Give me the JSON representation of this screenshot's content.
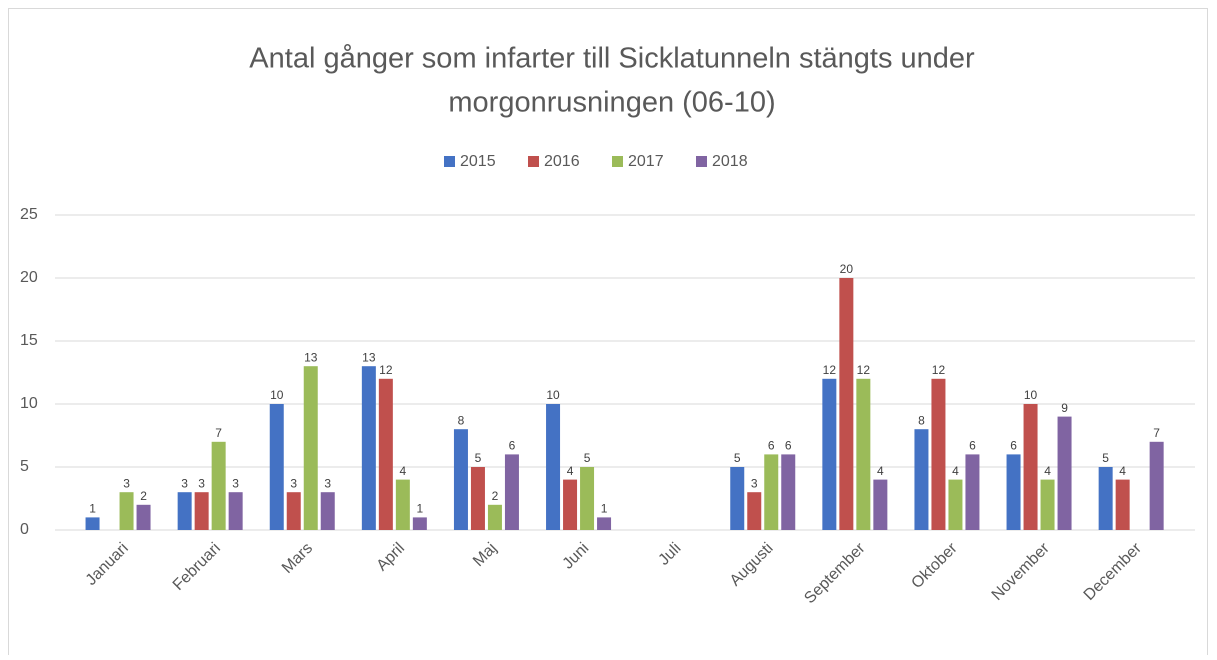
{
  "chart_data": {
    "type": "bar",
    "title": [
      "Antal gånger som infarter till Sicklatunneln stängts under",
      "morgonrusningen  (06-10)"
    ],
    "categories": [
      "Januari",
      "Februari",
      "Mars",
      "April",
      "Maj",
      "Juni",
      "Juli",
      "Augusti",
      "September",
      "Oktober",
      "November",
      "December"
    ],
    "series": [
      {
        "name": "2015",
        "color": "#4472c4",
        "values": [
          1,
          3,
          10,
          13,
          8,
          10,
          null,
          5,
          12,
          8,
          6,
          5
        ]
      },
      {
        "name": "2016",
        "color": "#c0504d",
        "values": [
          null,
          3,
          3,
          12,
          5,
          4,
          null,
          3,
          20,
          12,
          10,
          4
        ]
      },
      {
        "name": "2017",
        "color": "#9bbb59",
        "values": [
          3,
          7,
          13,
          4,
          2,
          5,
          null,
          6,
          12,
          4,
          4,
          null
        ]
      },
      {
        "name": "2018",
        "color": "#8064a2",
        "values": [
          2,
          3,
          3,
          1,
          6,
          1,
          null,
          6,
          4,
          6,
          9,
          7
        ]
      }
    ],
    "ylim": [
      0,
      25
    ],
    "yticks": [
      0,
      5,
      10,
      15,
      20,
      25
    ],
    "grid": true,
    "legend": "top"
  }
}
